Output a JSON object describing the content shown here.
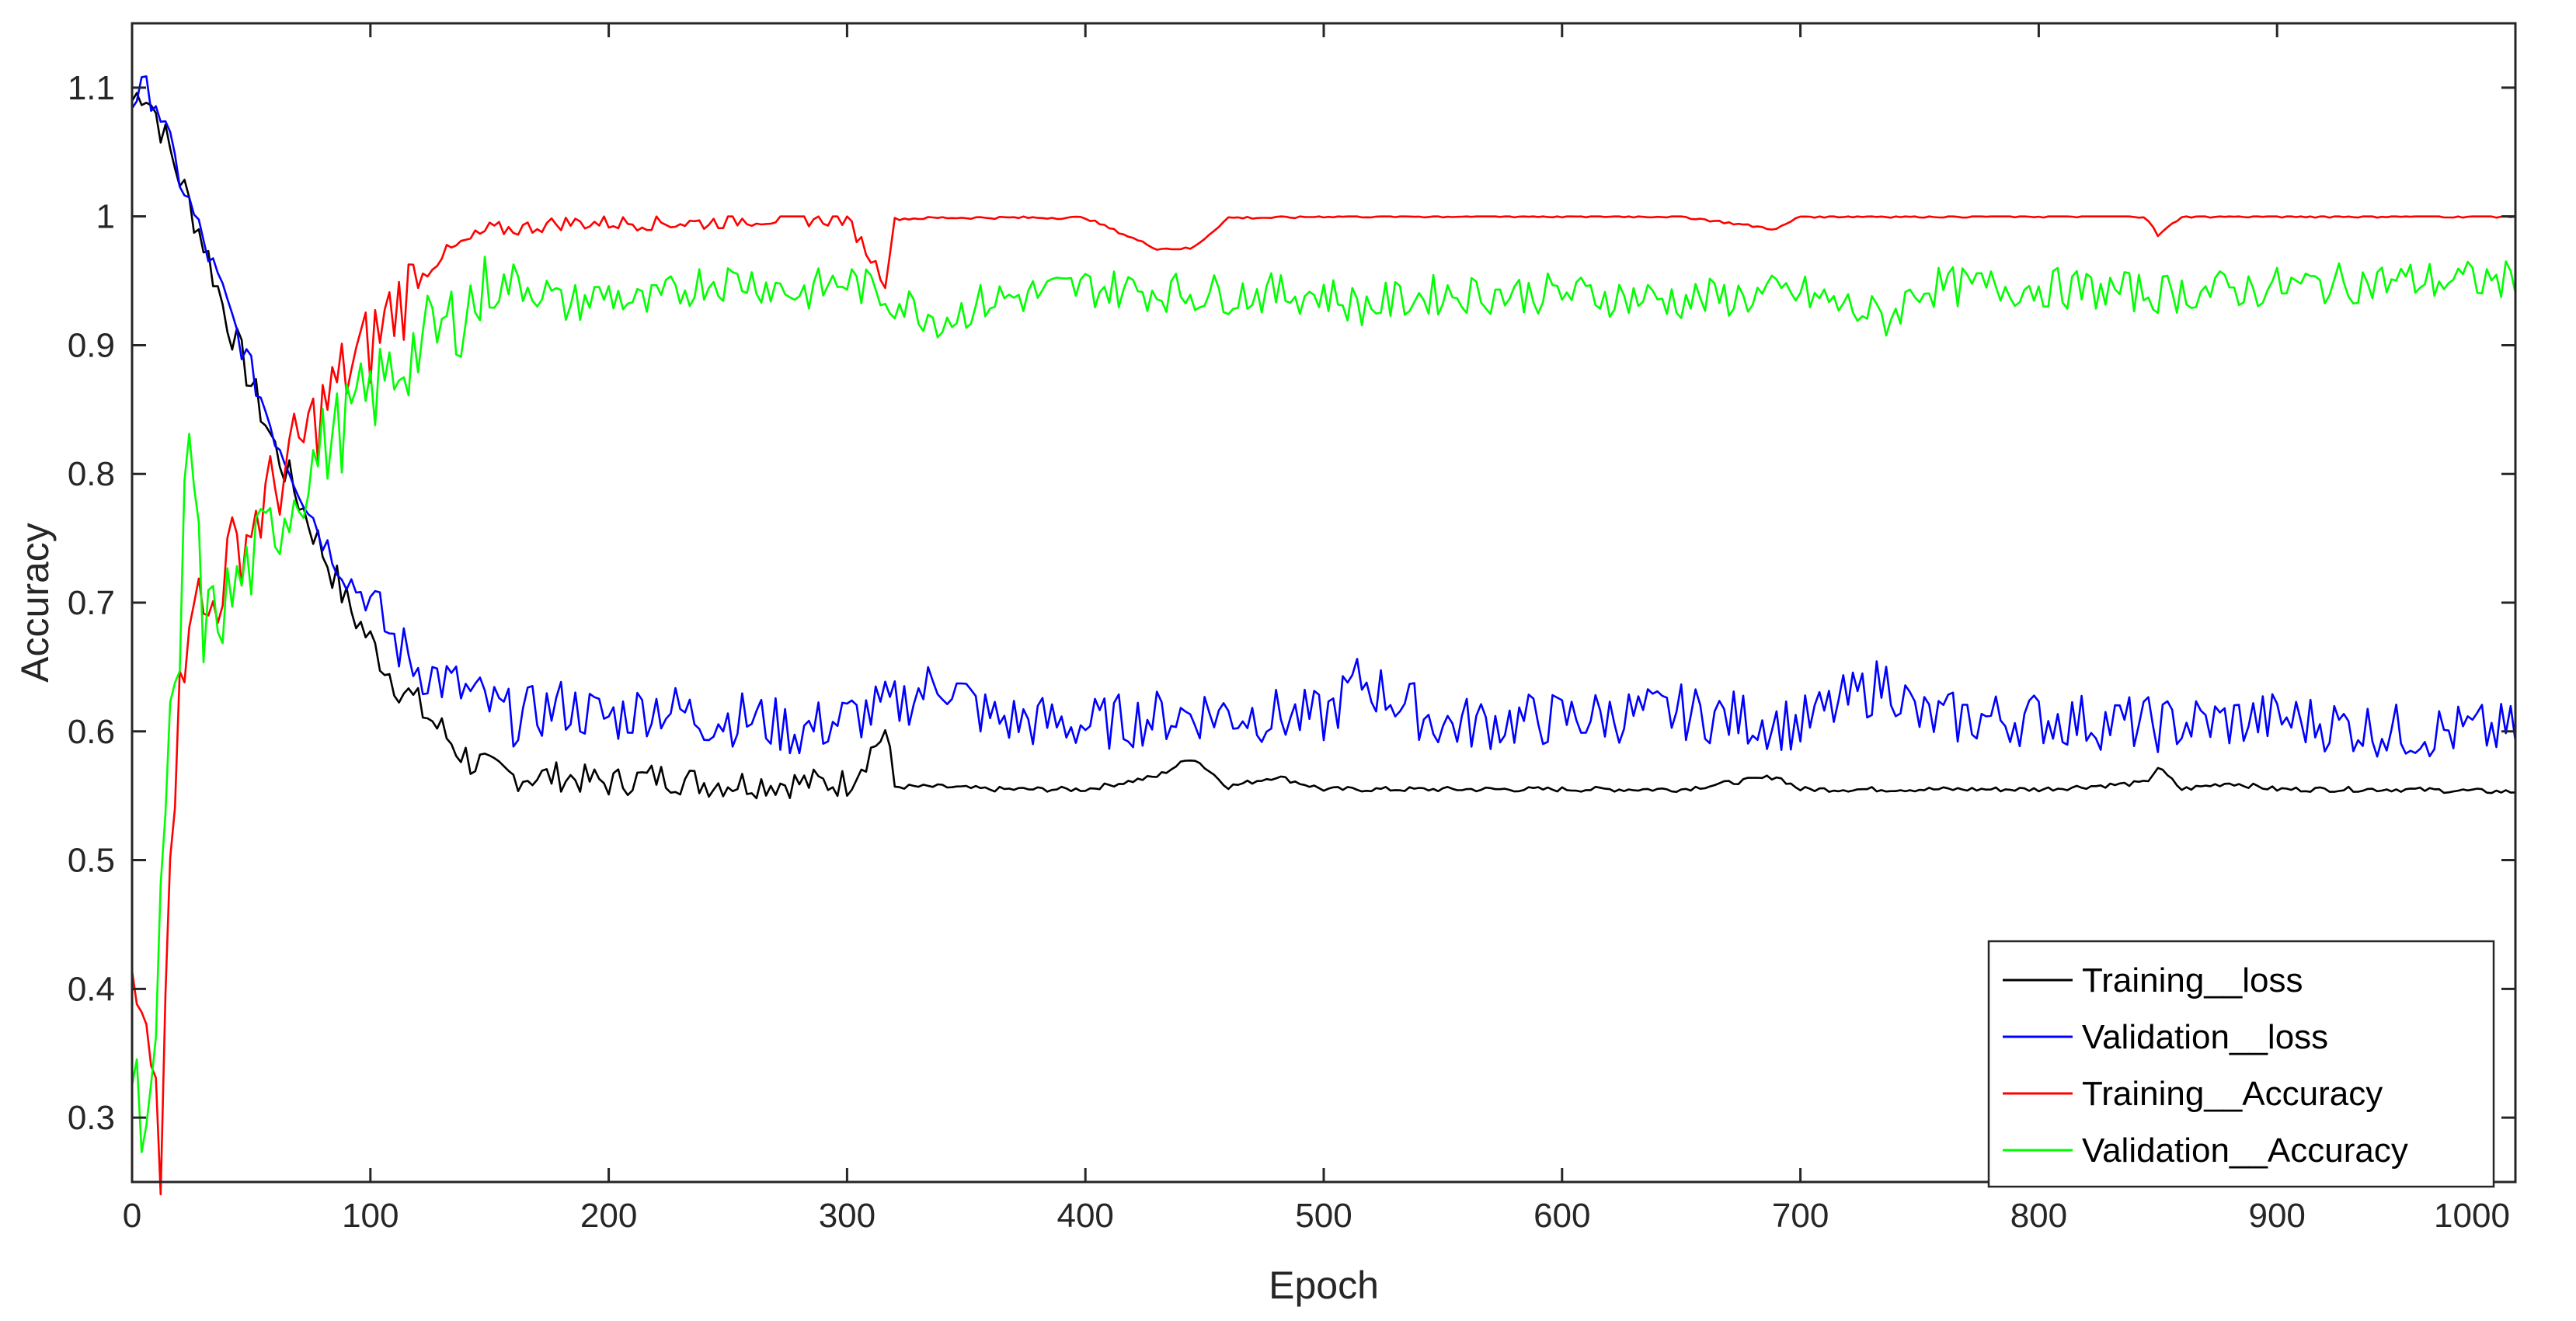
{
  "chart_data": {
    "type": "line",
    "title": "",
    "xlabel": "Epoch",
    "ylabel": "Accuracy",
    "xlim": [
      0,
      1000
    ],
    "ylim": [
      0.25,
      1.15
    ],
    "xticks": [
      0,
      100,
      200,
      300,
      400,
      500,
      600,
      700,
      800,
      900,
      1000
    ],
    "xtick_labels": [
      "0",
      "100",
      "200",
      "300",
      "400",
      "500",
      "600",
      "700",
      "800",
      "900",
      "1000"
    ],
    "yticks": [
      0.3,
      0.4,
      0.5,
      0.6,
      0.7,
      0.8,
      0.9,
      1.0,
      1.1
    ],
    "ytick_labels": [
      "0.3",
      "0.4",
      "0.5",
      "0.6",
      "0.7",
      "0.8",
      "0.9",
      "1",
      "1.1"
    ],
    "grid": false,
    "legend_position": "bottom-right",
    "series": [
      {
        "name": "Training__loss",
        "color": "#000000",
        "x": [
          0,
          5,
          10,
          20,
          30,
          40,
          50,
          60,
          70,
          80,
          90,
          100,
          110,
          120,
          130,
          140,
          150,
          160,
          180,
          200,
          220,
          240,
          260,
          280,
          300,
          316,
          320,
          340,
          360,
          400,
          430,
          445,
          460,
          480,
          500,
          550,
          600,
          650,
          690,
          700,
          750,
          800,
          845,
          850,
          860,
          880,
          900,
          950,
          1000
        ],
        "y": [
          1.09,
          1.1,
          1.08,
          1.03,
          0.98,
          0.92,
          0.87,
          0.82,
          0.78,
          0.74,
          0.7,
          0.67,
          0.64,
          0.62,
          0.6,
          0.58,
          0.57,
          0.565,
          0.565,
          0.56,
          0.565,
          0.56,
          0.56,
          0.56,
          0.56,
          0.6,
          0.557,
          0.557,
          0.555,
          0.555,
          0.565,
          0.58,
          0.557,
          0.565,
          0.555,
          0.555,
          0.555,
          0.555,
          0.565,
          0.555,
          0.555,
          0.555,
          0.56,
          0.572,
          0.555,
          0.56,
          0.555,
          0.555,
          0.553
        ]
      },
      {
        "name": "Validation__loss",
        "color": "#0000ff",
        "x": [
          0,
          5,
          10,
          20,
          30,
          40,
          50,
          60,
          70,
          80,
          90,
          100,
          110,
          120,
          130,
          140,
          150,
          160,
          180,
          200,
          220,
          240,
          260,
          280,
          300,
          320,
          340,
          360,
          400,
          450,
          500,
          515,
          550,
          600,
          650,
          700,
          737,
          750,
          800,
          850,
          900,
          950,
          1000
        ],
        "y": [
          1.09,
          1.1,
          1.09,
          1.03,
          0.98,
          0.93,
          0.88,
          0.83,
          0.79,
          0.75,
          0.72,
          0.7,
          0.67,
          0.65,
          0.64,
          0.63,
          0.62,
          0.61,
          0.62,
          0.61,
          0.62,
          0.61,
          0.61,
          0.6,
          0.61,
          0.62,
          0.64,
          0.61,
          0.605,
          0.615,
          0.61,
          0.64,
          0.605,
          0.61,
          0.615,
          0.605,
          0.64,
          0.61,
          0.61,
          0.605,
          0.61,
          0.6,
          0.6
        ]
      },
      {
        "name": "Training__Accuracy",
        "color": "#ff0000",
        "x": [
          0,
          5,
          10,
          12,
          15,
          20,
          25,
          30,
          40,
          50,
          60,
          70,
          80,
          90,
          100,
          110,
          120,
          130,
          140,
          150,
          160,
          180,
          200,
          220,
          240,
          260,
          280,
          300,
          316,
          320,
          340,
          360,
          400,
          430,
          445,
          460,
          480,
          500,
          550,
          600,
          650,
          690,
          700,
          750,
          800,
          845,
          850,
          860,
          900,
          950,
          1000
        ],
        "y": [
          0.4,
          0.36,
          0.33,
          0.27,
          0.5,
          0.62,
          0.73,
          0.68,
          0.73,
          0.76,
          0.79,
          0.82,
          0.85,
          0.88,
          0.9,
          0.93,
          0.95,
          0.97,
          0.98,
          0.99,
          0.99,
          0.995,
          0.995,
          0.995,
          0.995,
          0.998,
          0.998,
          0.998,
          0.95,
          0.998,
          0.999,
          0.999,
          0.999,
          0.975,
          0.975,
          0.999,
          0.999,
          1.0,
          1.0,
          1.0,
          1.0,
          0.99,
          1.0,
          1.0,
          1.0,
          1.0,
          0.985,
          1.0,
          1.0,
          1.0,
          1.0
        ]
      },
      {
        "name": "Validation__Accuracy",
        "color": "#00ff00",
        "x": [
          0,
          5,
          10,
          15,
          20,
          23,
          30,
          40,
          50,
          60,
          70,
          80,
          90,
          100,
          110,
          120,
          130,
          140,
          150,
          160,
          175,
          180,
          200,
          215,
          240,
          260,
          280,
          300,
          320,
          340,
          360,
          400,
          450,
          500,
          515,
          550,
          600,
          650,
          700,
          737,
          750,
          800,
          850,
          900,
          950,
          1000
        ],
        "y": [
          0.33,
          0.3,
          0.35,
          0.6,
          0.62,
          0.86,
          0.68,
          0.7,
          0.73,
          0.76,
          0.79,
          0.82,
          0.84,
          0.86,
          0.88,
          0.9,
          0.91,
          0.93,
          0.94,
          0.95,
          0.94,
          0.93,
          0.94,
          0.93,
          0.95,
          0.95,
          0.94,
          0.95,
          0.935,
          0.92,
          0.935,
          0.945,
          0.94,
          0.94,
          0.93,
          0.94,
          0.94,
          0.935,
          0.94,
          0.92,
          0.945,
          0.945,
          0.94,
          0.945,
          0.95,
          0.95
        ]
      }
    ]
  }
}
